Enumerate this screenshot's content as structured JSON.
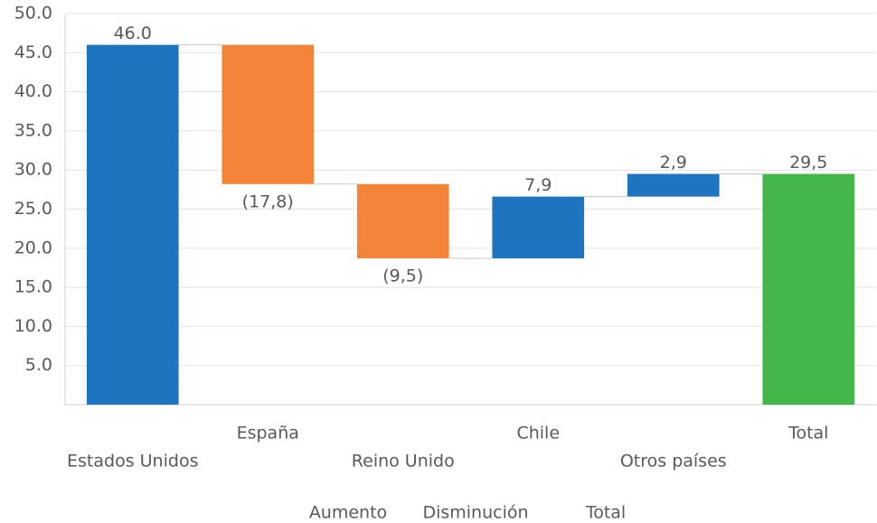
{
  "chart_data": {
    "type": "waterfall",
    "categories": [
      "Estados Unidos",
      "España",
      "Reino Unido",
      "Chile",
      "Otros países",
      "Total"
    ],
    "values": [
      46.0,
      -17.8,
      -9.5,
      7.9,
      2.9,
      29.5
    ],
    "value_labels": [
      "46.0",
      "(17,8)",
      "(9,5)",
      "7,9",
      "2,9",
      "29,5"
    ],
    "legend": [
      {
        "name": "Aumento",
        "color": "#1f74c0"
      },
      {
        "name": "Disminución",
        "color": "#f5843b"
      },
      {
        "name": "Total",
        "color": "#45b649"
      }
    ],
    "ylim": [
      0,
      50
    ],
    "yticks": [
      {
        "value": 5,
        "label": "5.0"
      },
      {
        "value": 10,
        "label": "10.0"
      },
      {
        "value": 15,
        "label": "15.0"
      },
      {
        "value": 20,
        "label": "20.0"
      },
      {
        "value": 25,
        "label": "25.0"
      },
      {
        "value": 30,
        "label": "30.0"
      },
      {
        "value": 35,
        "label": "35.0"
      },
      {
        "value": 40,
        "label": "40.0"
      },
      {
        "value": 45,
        "label": "45.0"
      },
      {
        "value": 50,
        "label": "50.0"
      }
    ],
    "grid": true
  }
}
